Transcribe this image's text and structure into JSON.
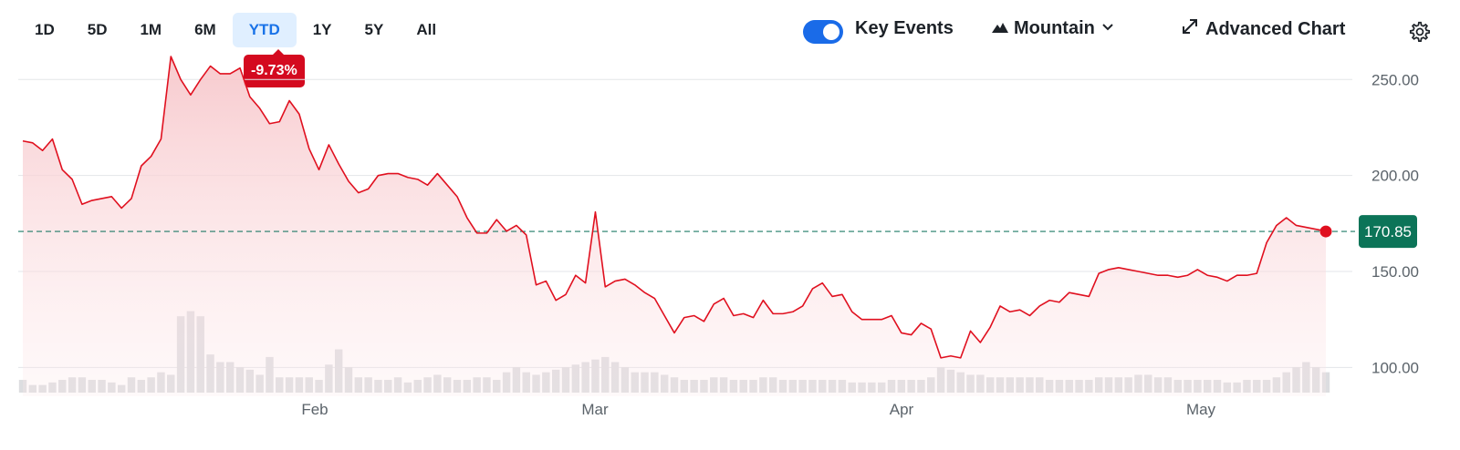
{
  "toolbar": {
    "ranges": [
      "1D",
      "5D",
      "1M",
      "6M",
      "YTD",
      "1Y",
      "5Y",
      "All"
    ],
    "active_range": "YTD",
    "change_badge": "-9.73%",
    "key_events_label": "Key Events",
    "key_events_enabled": true,
    "chart_type_label": "Mountain",
    "advanced_chart_label": "Advanced Chart",
    "icons": {
      "mountain": "mountain-icon",
      "chevron": "chevron-down-icon",
      "expand": "expand-arrows-icon",
      "settings": "gear-icon"
    }
  },
  "colors": {
    "line": "#e0101f",
    "area_top": "#f7c7cb",
    "baseline": "#1e7a66",
    "last_price_bg": "#0c7458",
    "volume": "#dcdde0",
    "grid": "#e3e5e8",
    "active_range_bg": "#e0efff",
    "active_range_text": "#1a73e8",
    "badge_bg": "#d40a1f",
    "toggle": "#1a6be8"
  },
  "chart_data": {
    "type": "area",
    "x_tick_labels": [
      "Feb",
      "Mar",
      "Apr",
      "May"
    ],
    "y_tick_labels": [
      "250.00",
      "200.00",
      "150.00",
      "100.00"
    ],
    "ylim": [
      85,
      262
    ],
    "last_price": "170.85",
    "reference_value": 170.85,
    "grid": true,
    "series": [
      {
        "values": [
          218,
          217,
          213,
          219,
          203,
          198,
          185,
          187,
          188,
          189,
          183,
          188,
          205,
          210,
          219,
          262,
          250,
          242,
          250,
          257,
          253,
          253,
          256,
          241,
          235,
          227,
          228,
          239,
          232,
          214,
          203,
          216,
          206,
          197,
          191,
          193,
          200,
          201,
          201,
          199,
          198,
          195,
          201,
          195,
          189,
          178,
          170,
          170,
          177,
          171,
          174,
          169,
          143,
          145,
          135,
          138,
          148,
          144,
          181,
          142,
          145,
          146,
          143,
          139,
          136,
          127,
          118,
          126,
          127,
          124,
          133,
          136,
          127,
          128,
          126,
          135,
          128,
          128,
          129,
          132,
          141,
          144,
          137,
          138,
          129,
          125,
          125,
          125,
          127,
          118,
          117,
          123,
          120,
          105,
          106,
          105,
          119,
          113,
          121,
          132,
          129,
          130,
          127,
          132,
          135,
          134,
          139,
          138,
          137,
          149,
          151,
          152,
          151,
          150,
          149,
          148,
          148,
          147,
          148,
          151,
          148,
          147,
          145,
          148,
          148,
          149,
          165,
          174,
          178,
          174,
          173,
          172,
          171
        ]
      }
    ],
    "volume": [
      5,
      3,
      3,
      4,
      5,
      6,
      6,
      5,
      5,
      4,
      3,
      6,
      5,
      6,
      8,
      7,
      30,
      32,
      30,
      15,
      12,
      12,
      10,
      9,
      7,
      14,
      6,
      6,
      6,
      6,
      5,
      11,
      17,
      10,
      6,
      6,
      5,
      5,
      6,
      4,
      5,
      6,
      7,
      6,
      5,
      5,
      6,
      6,
      5,
      8,
      10,
      8,
      7,
      8,
      9,
      10,
      11,
      12,
      13,
      14,
      12,
      10,
      8,
      8,
      8,
      7,
      6,
      5,
      5,
      5,
      6,
      6,
      5,
      5,
      5,
      6,
      6,
      5,
      5,
      5,
      5,
      5,
      5,
      5,
      4,
      4,
      4,
      4,
      5,
      5,
      5,
      5,
      6,
      10,
      9,
      8,
      7,
      7,
      6,
      6,
      6,
      6,
      6,
      6,
      5,
      5,
      5,
      5,
      5,
      6,
      6,
      6,
      6,
      7,
      7,
      6,
      6,
      5,
      5,
      5,
      5,
      5,
      4,
      4,
      5,
      5,
      5,
      6,
      8,
      10,
      12,
      10,
      8
    ]
  }
}
